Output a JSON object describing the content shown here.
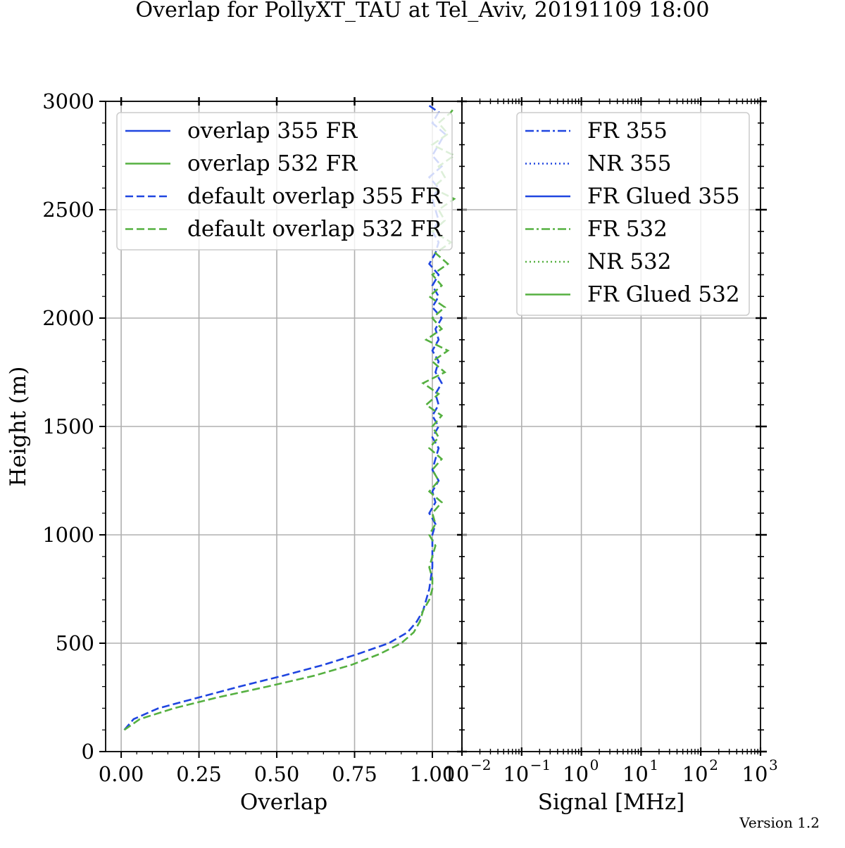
{
  "figure": {
    "title": "Overlap for PollyXT_TAU at Tel_Aviv, 20191109 18:00",
    "version": "Version 1.2"
  },
  "colors": {
    "blue": "#1f45e0",
    "green": "#55b040"
  },
  "chart_data": [
    {
      "type": "line",
      "panel": "left",
      "xlabel": "Overlap",
      "ylabel": "Height (m)",
      "xlim": [
        -0.05,
        1.095
      ],
      "ylim": [
        0,
        3000
      ],
      "xticks": [
        0.0,
        0.25,
        0.5,
        0.75,
        1.0
      ],
      "xtick_labels": [
        "0.00",
        "0.25",
        "0.50",
        "0.75",
        "1.00"
      ],
      "yticks": [
        0,
        500,
        1000,
        1500,
        2000,
        2500,
        3000
      ],
      "ytick_labels": [
        "0",
        "500",
        "1000",
        "1500",
        "2000",
        "2500",
        "3000"
      ],
      "grid": true,
      "legend_position": "top-right",
      "series": [
        {
          "name": "overlap 355 FR",
          "color": "#1f45e0",
          "style": "solid",
          "x": [],
          "y": []
        },
        {
          "name": "overlap 532 FR",
          "color": "#55b040",
          "style": "solid",
          "x": [],
          "y": []
        },
        {
          "name": "default overlap 355 FR",
          "color": "#1f45e0",
          "style": "dashed",
          "y": [
            100,
            150,
            200,
            250,
            300,
            350,
            400,
            450,
            500,
            550,
            600,
            650,
            700,
            750,
            800,
            850,
            900,
            950,
            1000,
            1050,
            1100,
            1150,
            1200,
            1250,
            1300,
            1350,
            1400,
            1450,
            1500,
            1550,
            1600,
            1650,
            1700,
            1750,
            1800,
            1850,
            1900,
            1950,
            2000,
            2050,
            2100,
            2150,
            2200,
            2250,
            2300,
            2350,
            2400,
            2450,
            2500,
            2550,
            2600,
            2650,
            2700,
            2750,
            2800,
            2850,
            2900,
            2950,
            2980
          ],
          "x": [
            0.01,
            0.04,
            0.12,
            0.25,
            0.38,
            0.52,
            0.65,
            0.76,
            0.86,
            0.92,
            0.95,
            0.97,
            0.98,
            0.99,
            0.995,
            1.0,
            1.0,
            1.0,
            1.0,
            1.01,
            0.99,
            1.01,
            1.0,
            1.02,
            1.0,
            1.01,
            1.02,
            1.0,
            1.02,
            1.0,
            1.02,
            1.01,
            1.03,
            1.01,
            1.02,
            1.0,
            1.02,
            1.01,
            1.03,
            1.0,
            1.02,
            1.0,
            1.02,
            0.99,
            1.01,
            1.02,
            1.0,
            1.02,
            1.01,
            1.0,
            1.02,
            0.99,
            1.03,
            1.0,
            1.02,
            1.04,
            1.0,
            1.02,
            0.99
          ]
        },
        {
          "name": "default overlap 532 FR",
          "color": "#55b040",
          "style": "dashed",
          "y": [
            100,
            150,
            200,
            250,
            300,
            350,
            400,
            450,
            500,
            550,
            600,
            650,
            700,
            750,
            800,
            850,
            900,
            950,
            1000,
            1050,
            1100,
            1150,
            1200,
            1250,
            1300,
            1350,
            1400,
            1450,
            1500,
            1550,
            1600,
            1650,
            1700,
            1750,
            1800,
            1850,
            1900,
            1950,
            2000,
            2050,
            2100,
            2150,
            2200,
            2250,
            2300,
            2350,
            2400,
            2450,
            2500,
            2550,
            2600,
            2650,
            2700,
            2750,
            2800,
            2850,
            2900,
            2950,
            2970
          ],
          "x": [
            0.01,
            0.06,
            0.17,
            0.31,
            0.47,
            0.62,
            0.74,
            0.83,
            0.9,
            0.94,
            0.96,
            0.97,
            0.99,
            1.0,
            1.0,
            0.99,
            1.0,
            1.01,
            0.99,
            1.01,
            1.0,
            1.03,
            0.99,
            1.02,
            1.0,
            1.03,
            0.99,
            1.02,
            1.0,
            1.03,
            0.98,
            1.02,
            0.97,
            1.04,
            1.0,
            1.05,
            0.98,
            1.03,
            1.0,
            1.04,
            0.99,
            1.03,
            1.0,
            1.05,
            1.01,
            1.06,
            1.0,
            1.04,
            1.02,
            1.07,
            1.0,
            1.04,
            1.02,
            1.07,
            1.0,
            1.05,
            1.02,
            1.06,
            1.07
          ]
        }
      ]
    },
    {
      "type": "line",
      "panel": "right",
      "xlabel": "Signal [MHz]",
      "xscale": "log",
      "xlim": [
        0.01,
        1000
      ],
      "ylim": [
        0,
        3000
      ],
      "xticks": [
        0.01,
        0.1,
        1,
        10,
        100,
        1000
      ],
      "xtick_labels": [
        {
          "base": "10",
          "exp": "−2"
        },
        {
          "base": "10",
          "exp": "−1"
        },
        {
          "base": "10",
          "exp": "0"
        },
        {
          "base": "10",
          "exp": "1"
        },
        {
          "base": "10",
          "exp": "2"
        },
        {
          "base": "10",
          "exp": "3"
        }
      ],
      "grid": true,
      "legend_position": "top-right",
      "series": [
        {
          "name": "FR 355",
          "color": "#1f45e0",
          "style": "dashdot",
          "x": [],
          "y": []
        },
        {
          "name": "NR 355",
          "color": "#1f45e0",
          "style": "dotted",
          "x": [],
          "y": []
        },
        {
          "name": "FR Glued 355",
          "color": "#1f45e0",
          "style": "solid",
          "x": [],
          "y": []
        },
        {
          "name": "FR 532",
          "color": "#55b040",
          "style": "dashdot",
          "x": [],
          "y": []
        },
        {
          "name": "NR 532",
          "color": "#55b040",
          "style": "dotted",
          "x": [],
          "y": []
        },
        {
          "name": "FR Glued 532",
          "color": "#55b040",
          "style": "solid",
          "x": [],
          "y": []
        }
      ]
    }
  ]
}
